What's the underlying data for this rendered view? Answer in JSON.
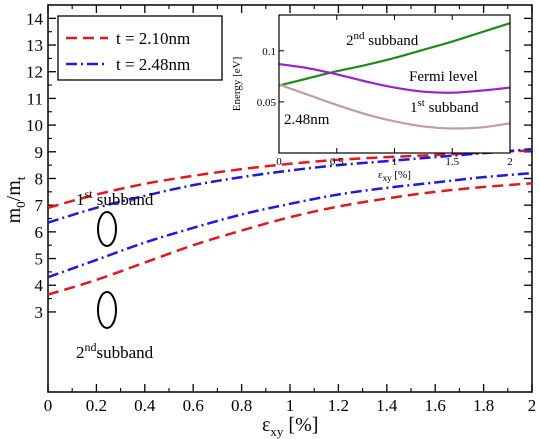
{
  "chart_data": [
    {
      "type": "line",
      "title": "",
      "xlabel_main": "ε",
      "xlabel_sub": "xy",
      "xlabel_unit": " [%]",
      "ylabel_main": "m",
      "ylabel_sub1": "0",
      "ylabel_mid": "/m",
      "ylabel_sub2": "t",
      "xlim": [
        0,
        2
      ],
      "ylim": [
        0,
        14.5
      ],
      "xticks": [
        0,
        0.2,
        0.4,
        0.6,
        0.8,
        1,
        1.2,
        1.4,
        1.6,
        1.8,
        2
      ],
      "xtick_labels": [
        "0",
        "0.2",
        "0.4",
        "0.6",
        "0.8",
        "1",
        "1.2",
        "1.4",
        "1.6",
        "1.8",
        "2"
      ],
      "yticks": [
        3,
        4,
        5,
        6,
        7,
        8,
        9,
        10,
        11,
        12,
        13,
        14
      ],
      "ytick_labels": [
        "3",
        "4",
        "5",
        "6",
        "7",
        "8",
        "9",
        "10",
        "11",
        "12",
        "13",
        "14"
      ],
      "x": [
        0,
        0.2,
        0.4,
        0.6,
        0.8,
        1.0,
        1.2,
        1.4,
        1.6,
        1.8,
        2.0
      ],
      "series": [
        {
          "name": "t = 2.10nm",
          "band": "1st",
          "color": "#e8161b",
          "dash": "dash",
          "values": [
            6.9,
            7.4,
            7.8,
            8.1,
            8.35,
            8.55,
            8.7,
            8.8,
            8.88,
            8.97,
            9.05
          ]
        },
        {
          "name": "t = 2.48nm",
          "band": "1st",
          "color": "#1a1ae0",
          "dash": "dashdot",
          "values": [
            6.35,
            6.9,
            7.35,
            7.75,
            8.05,
            8.3,
            8.5,
            8.65,
            8.8,
            8.95,
            9.1
          ]
        },
        {
          "name": "t = 2.10nm",
          "band": "2nd",
          "color": "#e8161b",
          "dash": "dash",
          "values": [
            3.65,
            4.2,
            4.85,
            5.5,
            6.05,
            6.55,
            6.95,
            7.25,
            7.5,
            7.68,
            7.82
          ]
        },
        {
          "name": "t = 2.48nm",
          "band": "2nd",
          "color": "#1a1ae0",
          "dash": "dashdot",
          "values": [
            4.3,
            4.95,
            5.6,
            6.15,
            6.65,
            7.05,
            7.4,
            7.65,
            7.85,
            8.05,
            8.2
          ]
        }
      ],
      "legend": {
        "position": "top-left",
        "entries": [
          {
            "label": "t = 2.10nm",
            "color": "#e8161b",
            "dash": "dash"
          },
          {
            "label": "t = 2.48nm",
            "color": "#1a1ae0",
            "dash": "dashdot"
          }
        ]
      },
      "annotations": {
        "first": {
          "pre": "1",
          "sup": "st",
          "post": " subband"
        },
        "second": {
          "pre": "2",
          "sup": "nd",
          "post": "subband"
        }
      },
      "grid": false
    },
    {
      "type": "line",
      "title": "",
      "xlabel_main": "ε",
      "xlabel_sub": "xy",
      "xlabel_unit": " [%]",
      "ylabel": "Energy [eV]",
      "xlim": [
        0,
        2
      ],
      "ylim": [
        0,
        0.135
      ],
      "xticks": [
        0,
        0.5,
        1,
        1.5,
        2
      ],
      "xtick_labels": [
        "0",
        "0.5",
        "1",
        "1.5",
        "2"
      ],
      "yticks": [
        0.05,
        0.1
      ],
      "ytick_labels": [
        "0.05",
        "0.1"
      ],
      "x": [
        0,
        0.25,
        0.5,
        0.75,
        1.0,
        1.25,
        1.5,
        1.75,
        2.0
      ],
      "series": [
        {
          "name": "2nd subband",
          "color": "#1a8c1a",
          "values": [
            0.066,
            0.073,
            0.08,
            0.086,
            0.093,
            0.101,
            0.109,
            0.118,
            0.127
          ]
        },
        {
          "name": "Fermi level",
          "color": "#9b1fd1",
          "values": [
            0.087,
            0.083,
            0.077,
            0.07,
            0.064,
            0.06,
            0.059,
            0.061,
            0.064
          ]
        },
        {
          "name": "1st subband",
          "color": "#c49c9c",
          "values": [
            0.067,
            0.057,
            0.047,
            0.038,
            0.031,
            0.026,
            0.024,
            0.025,
            0.029
          ]
        }
      ],
      "annotations": {
        "second": {
          "pre": "2",
          "sup": "nd",
          "post": " subband"
        },
        "fermi": "Fermi level",
        "first": {
          "pre": "1",
          "sup": "st",
          "post": " subband"
        },
        "thickness": "2.48nm"
      },
      "grid": false
    }
  ]
}
